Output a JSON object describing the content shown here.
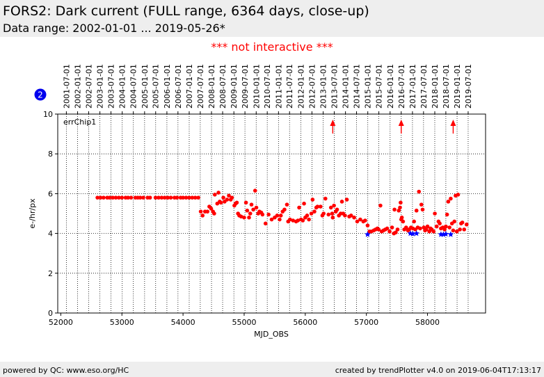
{
  "header": {
    "title": "FORS2: Dark current (FULL range, 6364 days, close-up)",
    "subtitle": "Data range: 2002-01-01 ... 2019-05-26*"
  },
  "notice": "*** not interactive ***",
  "badge": "2",
  "footer": {
    "left": "powered by QC: www.eso.org/HC",
    "right": "created by trendPlotter v4.0 on 2019-06-04T17:13:17"
  },
  "colors": {
    "points": "#ff0000",
    "stars": "#0000ff",
    "badge": "#0000ee",
    "notice": "#ff0000"
  },
  "chart_data": {
    "type": "scatter",
    "xlabel": "MJD_OBS",
    "ylabel": "e-/hr/px",
    "xlim": [
      51950,
      58950
    ],
    "ylim": [
      0,
      10
    ],
    "xticks": [
      52000,
      53000,
      54000,
      55000,
      56000,
      57000,
      58000
    ],
    "yticks": [
      0,
      2,
      4,
      6,
      8,
      10
    ],
    "legend": "errChip1",
    "grid": true,
    "top_axis": {
      "labels": [
        "2001-07-01",
        "2002-01-01",
        "2002-07-01",
        "2003-01-01",
        "2003-07-01",
        "2004-01-01",
        "2004-07-01",
        "2005-01-01",
        "2005-07-01",
        "2006-01-01",
        "2006-07-01",
        "2007-01-01",
        "2007-07-01",
        "2008-01-01",
        "2008-07-01",
        "2009-01-01",
        "2009-07-01",
        "2010-01-01",
        "2010-07-01",
        "2011-01-01",
        "2011-07-01",
        "2012-01-01",
        "2012-07-01",
        "2013-01-01",
        "2013-07-01",
        "2014-01-01",
        "2014-07-01",
        "2015-01-01",
        "2015-07-01",
        "2016-01-01",
        "2016-07-01",
        "2017-01-01",
        "2017-07-01",
        "2018-01-01",
        "2018-07-01",
        "2019-01-01",
        "2019-07-01"
      ],
      "mjd": [
        52091,
        52275,
        52456,
        52640,
        52821,
        53005,
        53187,
        53371,
        53552,
        53736,
        53917,
        54101,
        54282,
        54466,
        54648,
        54832,
        55013,
        55197,
        55378,
        55562,
        55743,
        55927,
        56109,
        56293,
        56474,
        56658,
        56839,
        57023,
        57204,
        57388,
        57570,
        57754,
        57935,
        58119,
        58300,
        58484,
        58665
      ]
    },
    "series": [
      {
        "values": [
          [
            52600,
            5.8
          ],
          [
            52650,
            5.8
          ],
          [
            52700,
            5.8
          ],
          [
            52760,
            5.8
          ],
          [
            52800,
            5.8
          ],
          [
            52850,
            5.8
          ],
          [
            52900,
            5.8
          ],
          [
            52950,
            5.8
          ],
          [
            53000,
            5.8
          ],
          [
            53060,
            5.8
          ],
          [
            53100,
            5.8
          ],
          [
            53150,
            5.8
          ],
          [
            53220,
            5.8
          ],
          [
            53260,
            5.8
          ],
          [
            53300,
            5.8
          ],
          [
            53350,
            5.8
          ],
          [
            53420,
            5.8
          ],
          [
            53460,
            5.8
          ],
          [
            53550,
            5.8
          ],
          [
            53600,
            5.8
          ],
          [
            53650,
            5.8
          ],
          [
            53700,
            5.8
          ],
          [
            53750,
            5.8
          ],
          [
            53800,
            5.8
          ],
          [
            53860,
            5.8
          ],
          [
            53900,
            5.8
          ],
          [
            53960,
            5.8
          ],
          [
            54000,
            5.8
          ],
          [
            54050,
            5.8
          ],
          [
            54100,
            5.8
          ],
          [
            54150,
            5.8
          ],
          [
            54200,
            5.8
          ],
          [
            54250,
            5.8
          ],
          [
            54290,
            5.1
          ],
          [
            54320,
            4.9
          ],
          [
            54360,
            5.1
          ],
          [
            54400,
            5.1
          ],
          [
            54430,
            5.35
          ],
          [
            54460,
            5.25
          ],
          [
            54490,
            5.1
          ],
          [
            54510,
            5.0
          ],
          [
            54520,
            5.95
          ],
          [
            54560,
            5.5
          ],
          [
            54580,
            6.05
          ],
          [
            54600,
            5.6
          ],
          [
            54620,
            5.55
          ],
          [
            54660,
            5.8
          ],
          [
            54680,
            5.6
          ],
          [
            54720,
            5.7
          ],
          [
            54750,
            5.9
          ],
          [
            54780,
            5.7
          ],
          [
            54800,
            5.8
          ],
          [
            54840,
            5.4
          ],
          [
            54860,
            5.5
          ],
          [
            54880,
            5.55
          ],
          [
            54900,
            5.0
          ],
          [
            54920,
            4.9
          ],
          [
            54950,
            4.85
          ],
          [
            55000,
            4.8
          ],
          [
            55030,
            5.55
          ],
          [
            55050,
            5.15
          ],
          [
            55080,
            4.8
          ],
          [
            55100,
            5.0
          ],
          [
            55120,
            5.45
          ],
          [
            55150,
            5.2
          ],
          [
            55180,
            6.15
          ],
          [
            55200,
            5.3
          ],
          [
            55230,
            5.0
          ],
          [
            55250,
            5.1
          ],
          [
            55280,
            5.05
          ],
          [
            55300,
            4.95
          ],
          [
            55350,
            4.5
          ],
          [
            55400,
            4.95
          ],
          [
            55450,
            4.7
          ],
          [
            55500,
            4.8
          ],
          [
            55540,
            4.9
          ],
          [
            55580,
            4.7
          ],
          [
            55600,
            4.9
          ],
          [
            55630,
            5.1
          ],
          [
            55660,
            5.2
          ],
          [
            55700,
            5.45
          ],
          [
            55720,
            4.6
          ],
          [
            55750,
            4.7
          ],
          [
            55800,
            4.65
          ],
          [
            55850,
            4.6
          ],
          [
            55880,
            4.65
          ],
          [
            55900,
            5.3
          ],
          [
            55930,
            4.7
          ],
          [
            55960,
            4.65
          ],
          [
            55980,
            5.5
          ],
          [
            56000,
            4.8
          ],
          [
            56030,
            4.9
          ],
          [
            56060,
            4.7
          ],
          [
            56100,
            5.0
          ],
          [
            56120,
            5.7
          ],
          [
            56150,
            5.1
          ],
          [
            56180,
            5.3
          ],
          [
            56200,
            5.35
          ],
          [
            56250,
            5.35
          ],
          [
            56280,
            4.9
          ],
          [
            56300,
            5.0
          ],
          [
            56330,
            5.75
          ],
          [
            56380,
            4.95
          ],
          [
            56420,
            5.3
          ],
          [
            56440,
            5.0
          ],
          [
            56450,
            4.8
          ],
          [
            56470,
            5.4
          ],
          [
            56500,
            5.1
          ],
          [
            56520,
            5.2
          ],
          [
            56550,
            4.9
          ],
          [
            56580,
            5.0
          ],
          [
            56600,
            5.6
          ],
          [
            56620,
            5.0
          ],
          [
            56650,
            4.9
          ],
          [
            56680,
            5.7
          ],
          [
            56720,
            4.85
          ],
          [
            56750,
            4.9
          ],
          [
            56800,
            4.8
          ],
          [
            56850,
            4.6
          ],
          [
            56900,
            4.7
          ],
          [
            56950,
            4.6
          ],
          [
            56980,
            4.65
          ],
          [
            57020,
            4.4
          ],
          [
            57050,
            4.1
          ],
          [
            57080,
            4.1
          ],
          [
            57120,
            4.15
          ],
          [
            57150,
            4.2
          ],
          [
            57180,
            4.25
          ],
          [
            57200,
            4.2
          ],
          [
            57230,
            5.4
          ],
          [
            57250,
            4.1
          ],
          [
            57280,
            4.15
          ],
          [
            57310,
            4.2
          ],
          [
            57340,
            4.25
          ],
          [
            57380,
            4.1
          ],
          [
            57420,
            4.3
          ],
          [
            57450,
            4.0
          ],
          [
            57460,
            5.2
          ],
          [
            57480,
            4.05
          ],
          [
            57510,
            4.2
          ],
          [
            57530,
            5.15
          ],
          [
            57550,
            5.3
          ],
          [
            57560,
            5.55
          ],
          [
            57570,
            4.7
          ],
          [
            57580,
            4.8
          ],
          [
            57600,
            4.6
          ],
          [
            57620,
            4.2
          ],
          [
            57650,
            4.3
          ],
          [
            57680,
            4.15
          ],
          [
            57700,
            4.2
          ],
          [
            57730,
            4.3
          ],
          [
            57760,
            4.25
          ],
          [
            57780,
            4.6
          ],
          [
            57800,
            4.2
          ],
          [
            57820,
            5.15
          ],
          [
            57840,
            4.3
          ],
          [
            57860,
            6.1
          ],
          [
            57880,
            4.25
          ],
          [
            57900,
            5.45
          ],
          [
            57920,
            5.2
          ],
          [
            57940,
            4.3
          ],
          [
            57960,
            4.15
          ],
          [
            57980,
            4.2
          ],
          [
            58000,
            4.35
          ],
          [
            58030,
            4.1
          ],
          [
            58050,
            4.25
          ],
          [
            58070,
            4.2
          ],
          [
            58100,
            4.1
          ],
          [
            58120,
            5.0
          ],
          [
            58150,
            4.35
          ],
          [
            58180,
            4.6
          ],
          [
            58200,
            4.5
          ],
          [
            58220,
            4.25
          ],
          [
            58250,
            4.3
          ],
          [
            58280,
            4.2
          ],
          [
            58300,
            4.35
          ],
          [
            58320,
            4.95
          ],
          [
            58340,
            5.6
          ],
          [
            58360,
            4.3
          ],
          [
            58380,
            5.75
          ],
          [
            58400,
            4.5
          ],
          [
            58420,
            4.15
          ],
          [
            58440,
            4.6
          ],
          [
            58460,
            5.9
          ],
          [
            58480,
            4.1
          ],
          [
            58500,
            5.95
          ],
          [
            58530,
            4.2
          ],
          [
            58550,
            4.5
          ],
          [
            58570,
            4.55
          ],
          [
            58600,
            4.2
          ],
          [
            58640,
            4.45
          ]
        ]
      },
      {
        "marker": "star",
        "values": [
          [
            57020,
            3.95
          ],
          [
            57720,
            4.0
          ],
          [
            57760,
            3.98
          ],
          [
            57820,
            4.0
          ],
          [
            58220,
            3.95
          ],
          [
            58260,
            3.95
          ],
          [
            58300,
            3.97
          ],
          [
            58380,
            3.95
          ]
        ]
      }
    ],
    "offscale": [
      56450,
      57570,
      58420
    ]
  }
}
